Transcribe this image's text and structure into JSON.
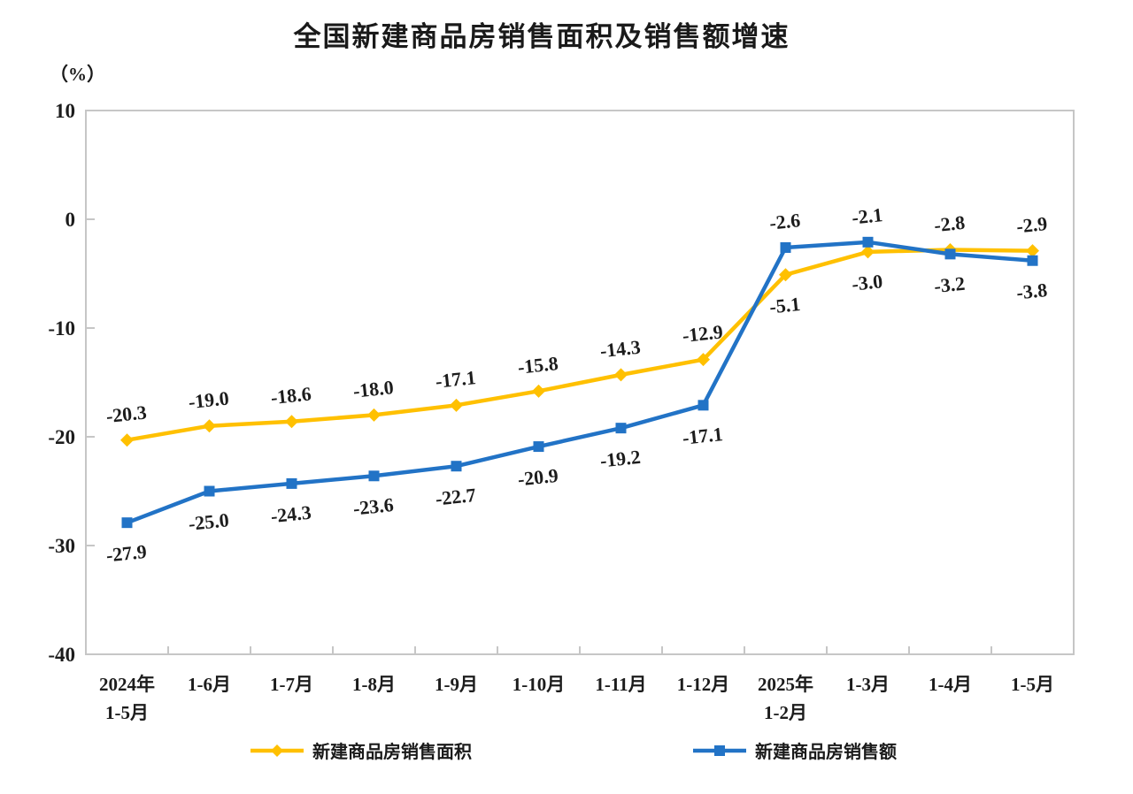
{
  "chart_data": {
    "type": "line",
    "title": "全国新建商品房销售面积及销售额增速",
    "unit_label": "（%）",
    "categories": [
      "2024年\n1-5月",
      "1-6月",
      "1-7月",
      "1-8月",
      "1-9月",
      "1-10月",
      "1-11月",
      "1-12月",
      "2025年\n1-2月",
      "1-3月",
      "1-4月",
      "1-5月"
    ],
    "series": [
      {
        "key": "sales-area",
        "name": "新建商品房销售面积",
        "color": "#FFC000",
        "marker": "diamond",
        "values": [
          -20.3,
          -19.0,
          -18.6,
          -18.0,
          -17.1,
          -15.8,
          -14.3,
          -12.9,
          -5.1,
          -3.0,
          -2.8,
          -2.9
        ]
      },
      {
        "key": "sales-value",
        "name": "新建商品房销售额",
        "color": "#2273C6",
        "marker": "square",
        "values": [
          -27.9,
          -25.0,
          -24.3,
          -23.6,
          -22.7,
          -20.9,
          -19.2,
          -17.1,
          -2.6,
          -2.1,
          -3.2,
          -3.8
        ]
      }
    ],
    "ylim": [
      -40,
      10
    ],
    "yticks": [
      10,
      0,
      -10,
      -20,
      -30,
      -40
    ],
    "grid": false,
    "legend_position": "bottom",
    "axis_color": "#c6c6c6",
    "text_color": "#1c1c1c",
    "background": "#ffffff"
  }
}
